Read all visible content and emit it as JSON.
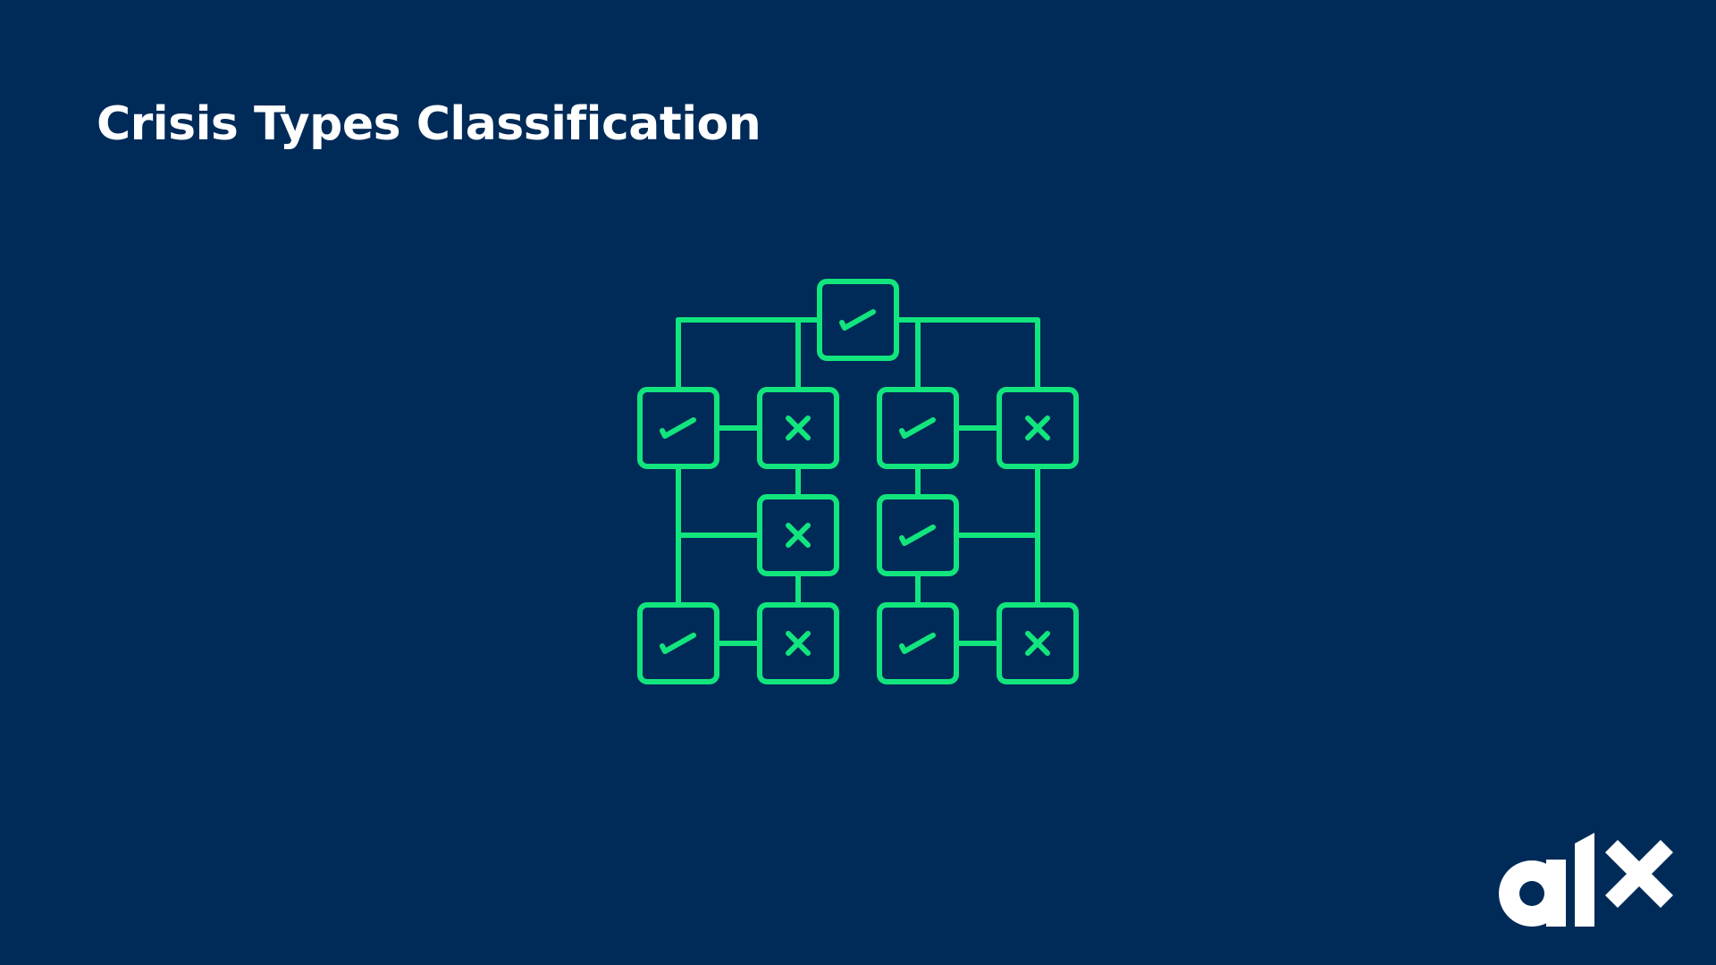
{
  "slide": {
    "title": "Crisis Types Classification",
    "background_color": "#002B58",
    "title_color": "#FFFFFF"
  },
  "diagram": {
    "stroke_color": "#12E57D",
    "nodes": [
      {
        "id": "root",
        "mark": "check"
      },
      {
        "id": "l-top-left",
        "mark": "check"
      },
      {
        "id": "l-top-right",
        "mark": "cross"
      },
      {
        "id": "l-mid",
        "mark": "cross"
      },
      {
        "id": "l-bottom-left",
        "mark": "check"
      },
      {
        "id": "l-bottom-right",
        "mark": "cross"
      },
      {
        "id": "r-top-left",
        "mark": "check"
      },
      {
        "id": "r-top-right",
        "mark": "cross"
      },
      {
        "id": "r-mid",
        "mark": "check"
      },
      {
        "id": "r-bottom-left",
        "mark": "check"
      },
      {
        "id": "r-bottom-right",
        "mark": "cross"
      }
    ]
  },
  "logo": {
    "text": "alx",
    "color": "#FFFFFF",
    "icon": "alx-logo"
  }
}
